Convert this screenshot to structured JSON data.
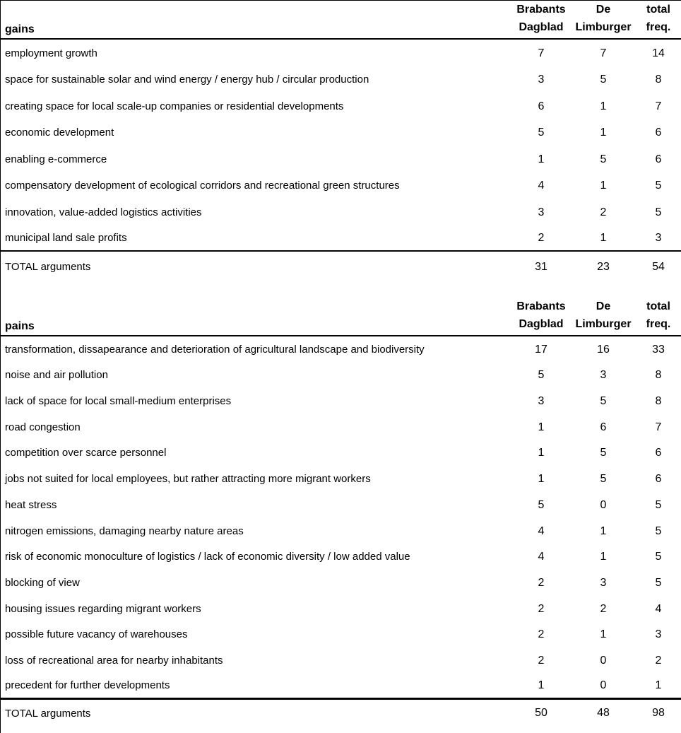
{
  "columns": [
    {
      "line1": "Brabants",
      "line2": "Dagblad"
    },
    {
      "line1": "De",
      "line2": "Limburger"
    },
    {
      "line1": "total",
      "line2": "freq."
    }
  ],
  "gains": {
    "title": "gains",
    "rows": [
      {
        "label": "employment growth",
        "values": [
          7,
          7,
          14
        ]
      },
      {
        "label": "space for sustainable solar and wind energy / energy hub / circular production",
        "values": [
          3,
          5,
          8
        ]
      },
      {
        "label": "creating space for local scale-up companies or residential developments",
        "values": [
          6,
          1,
          7
        ]
      },
      {
        "label": "economic development",
        "values": [
          5,
          1,
          6
        ]
      },
      {
        "label": "enabling e-commerce",
        "values": [
          1,
          5,
          6
        ]
      },
      {
        "label": "compensatory development of ecological corridors and recreational green structures",
        "values": [
          4,
          1,
          5
        ]
      },
      {
        "label": "innovation, value-added logistics activities",
        "values": [
          3,
          2,
          5
        ]
      },
      {
        "label": "municipal land sale profits",
        "values": [
          2,
          1,
          3
        ]
      }
    ],
    "total": {
      "label": "TOTAL arguments",
      "values": [
        31,
        23,
        54
      ]
    }
  },
  "pains": {
    "title": "pains",
    "rows": [
      {
        "label": "transformation, dissapearance and deterioration of agricultural landscape and biodiversity",
        "values": [
          17,
          16,
          33
        ]
      },
      {
        "label": "noise and air pollution",
        "values": [
          5,
          3,
          8
        ]
      },
      {
        "label": "lack of space for local small-medium enterprises",
        "values": [
          3,
          5,
          8
        ]
      },
      {
        "label": "road congestion",
        "values": [
          1,
          6,
          7
        ]
      },
      {
        "label": "competition over scarce personnel",
        "values": [
          1,
          5,
          6
        ]
      },
      {
        "label": "jobs not suited for local employees, but rather attracting more migrant workers",
        "values": [
          1,
          5,
          6
        ]
      },
      {
        "label": "heat stress",
        "values": [
          5,
          0,
          5
        ]
      },
      {
        "label": "nitrogen emissions, damaging nearby nature areas",
        "values": [
          4,
          1,
          5
        ]
      },
      {
        "label": "risk of economic monoculture of logistics / lack of economic diversity / low added value",
        "values": [
          4,
          1,
          5
        ]
      },
      {
        "label": "blocking of view",
        "values": [
          2,
          3,
          5
        ]
      },
      {
        "label": "housing issues regarding migrant workers",
        "values": [
          2,
          2,
          4
        ]
      },
      {
        "label": "possible future vacancy of warehouses",
        "values": [
          2,
          1,
          3
        ]
      },
      {
        "label": "loss of recreational area for nearby inhabitants",
        "values": [
          2,
          0,
          2
        ]
      },
      {
        "label": "precedent for further developments",
        "values": [
          1,
          0,
          1
        ]
      }
    ],
    "total": {
      "label": "TOTAL arguments",
      "values": [
        50,
        48,
        98
      ]
    }
  }
}
